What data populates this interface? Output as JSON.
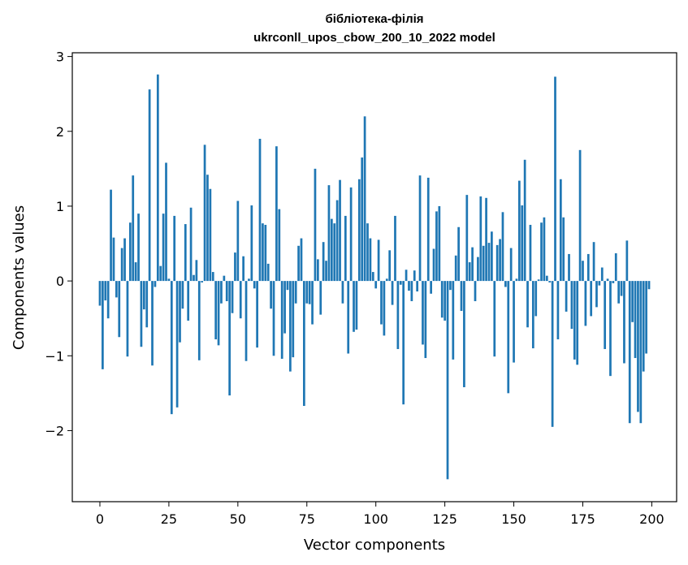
{
  "chart_data": {
    "type": "bar",
    "title_line1": "бібліотека-філія",
    "title_line2": "ukrconll_upos_cbow_200_10_2022 model",
    "xlabel": "Vector components",
    "ylabel": "Components values",
    "xlim": [
      -10,
      209
    ],
    "ylim": [
      -2.95,
      3.05
    ],
    "xticks": [
      0,
      25,
      50,
      75,
      100,
      125,
      150,
      175,
      200
    ],
    "yticks": [
      -2,
      -1,
      0,
      1,
      2,
      3
    ],
    "ytick_labels": [
      "−2",
      "−1",
      "0",
      "1",
      "2",
      "3"
    ],
    "bar_color": "#1f77b4",
    "grid": false,
    "values": [
      -0.33,
      -1.18,
      -0.26,
      -0.5,
      1.22,
      0.58,
      -0.22,
      -0.75,
      0.44,
      0.57,
      -1.01,
      0.78,
      1.41,
      0.25,
      0.9,
      -0.88,
      -0.38,
      -0.62,
      2.56,
      -1.13,
      -0.08,
      2.76,
      0.2,
      0.9,
      1.58,
      0.03,
      -1.78,
      0.87,
      -1.69,
      -0.82,
      -0.37,
      0.76,
      -0.53,
      0.98,
      0.08,
      0.28,
      -1.06,
      -0.02,
      1.82,
      1.42,
      1.23,
      0.12,
      -0.78,
      -0.86,
      -0.3,
      0.07,
      -0.27,
      -1.53,
      -0.43,
      0.38,
      1.07,
      -0.5,
      0.33,
      -1.07,
      0.03,
      1.01,
      -0.1,
      -0.89,
      1.9,
      0.77,
      0.75,
      0.23,
      -0.37,
      -1.0,
      1.8,
      0.96,
      -1.04,
      -0.7,
      -0.12,
      -1.21,
      -1.02,
      -0.3,
      0.47,
      0.57,
      -1.67,
      -0.3,
      -0.31,
      -0.58,
      1.5,
      0.29,
      -0.45,
      0.52,
      0.27,
      1.28,
      0.83,
      0.77,
      1.08,
      1.35,
      -0.3,
      0.87,
      -0.97,
      1.25,
      -0.68,
      -0.65,
      1.36,
      1.65,
      2.2,
      0.77,
      0.57,
      0.12,
      -0.1,
      0.55,
      -0.58,
      -0.73,
      0.03,
      0.41,
      -0.32,
      0.87,
      -0.91,
      -0.05,
      -1.65,
      0.15,
      -0.13,
      -0.27,
      0.14,
      -0.14,
      1.41,
      -0.85,
      -1.03,
      1.38,
      -0.17,
      0.43,
      0.93,
      1.0,
      -0.49,
      -0.53,
      -2.65,
      -0.12,
      -1.05,
      0.34,
      0.72,
      -0.4,
      -1.42,
      1.15,
      0.25,
      0.45,
      -0.27,
      0.32,
      1.13,
      0.47,
      1.11,
      0.51,
      0.66,
      -1.01,
      0.48,
      0.56,
      0.92,
      -0.08,
      -1.5,
      0.44,
      -1.09,
      0.03,
      1.34,
      1.01,
      1.62,
      -0.62,
      0.75,
      -0.9,
      -0.47,
      0.02,
      0.78,
      0.85,
      0.07,
      -0.02,
      -1.95,
      2.73,
      -0.78,
      1.36,
      0.85,
      -0.41,
      0.36,
      -0.64,
      -1.05,
      -1.12,
      1.75,
      0.27,
      -0.6,
      0.36,
      -0.47,
      0.52,
      -0.35,
      -0.06,
      0.18,
      -0.91,
      0.03,
      -1.27,
      -0.03,
      0.37,
      -0.3,
      -0.2,
      -1.1,
      0.54,
      -1.9,
      -0.55,
      -1.03,
      -1.75,
      -1.9,
      -1.21,
      -0.97,
      -0.11
    ]
  }
}
